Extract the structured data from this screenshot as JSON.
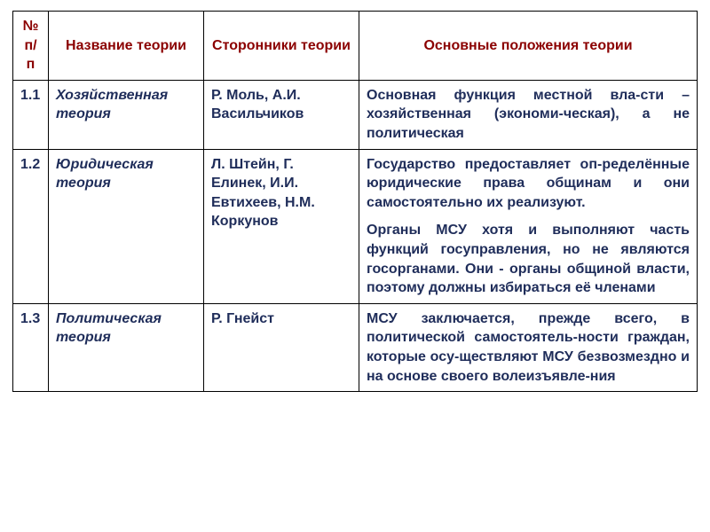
{
  "colors": {
    "header_text": "#8B0000",
    "body_text": "#1F2D5A",
    "border": "#000000",
    "background": "#ffffff"
  },
  "columns": {
    "num": "№ п/п",
    "name": "Название теории",
    "supporters": "Сторонники теории",
    "main": "Основные положения теории"
  },
  "rows": [
    {
      "num": "1.1",
      "name": "Хозяйственная теория",
      "supporters": "Р. Моль, А.И. Васильчиков",
      "main": [
        "Основная функция местной вла-сти – хозяйственная (экономи-ческая), а не политическая"
      ]
    },
    {
      "num": "1.2",
      "name": "Юридическая теория",
      "supporters": "Л. Штейн, Г. Елинек, И.И. Евтихеев, Н.М. Коркунов",
      "main": [
        "Государство предоставляет оп-ределённые юридические права общинам и они самостоятельно их реализуют.",
        "Органы МСУ хотя и выполняют часть функций госуправления, но не являются госорганами. Они - органы общиной власти, поэтому должны избираться её членами"
      ]
    },
    {
      "num": "1.3",
      "name": "Политическая теория",
      "supporters": "Р. Гнейст",
      "main": [
        "МСУ заключается, прежде всего, в политической самостоятель-ности граждан, которые осу-ществляют МСУ безвозмездно и на основе своего волеизъявле-ния"
      ]
    }
  ]
}
